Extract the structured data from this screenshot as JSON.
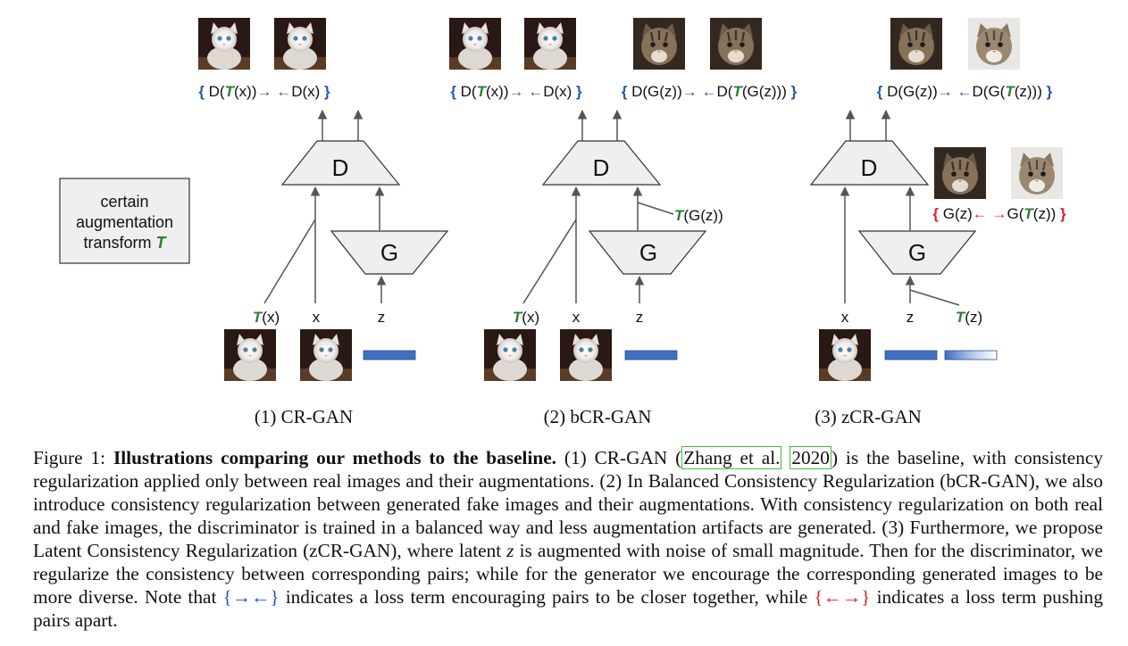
{
  "augment_box": {
    "line1": "certain",
    "line2": "augmentation",
    "line3": "transform",
    "symbol": "T"
  },
  "panels": [
    {
      "id": "cr",
      "caption": "(1) CR-GAN",
      "top_losses": [
        {
          "parts": [
            "{ ",
            "D(",
            "T",
            "(x))",
            "→ ←",
            "D(x)",
            " }"
          ]
        }
      ],
      "inputs": [
        "T(x)",
        "x",
        "z"
      ]
    },
    {
      "id": "bcr",
      "caption": "(2) bCR-GAN",
      "top_losses": [
        {
          "parts": [
            "{ ",
            "D(",
            "T",
            "(x))",
            "→ ←",
            "D(x)",
            " }"
          ]
        },
        {
          "parts": [
            "{ ",
            "D(G(z))",
            "→ ←",
            "D(",
            "T",
            "(G(z)))",
            " }"
          ]
        }
      ],
      "side_label": [
        "T",
        "(G(z))"
      ],
      "inputs": [
        "T(x)",
        "x",
        "z"
      ]
    },
    {
      "id": "zcr",
      "caption": "(3) zCR-GAN",
      "top_losses": [
        {
          "parts": [
            "{ ",
            "D(G(z))",
            "→ ←",
            "D(G(",
            "T",
            "(z)))",
            " }"
          ]
        }
      ],
      "gen_loss": {
        "parts": [
          "{ ",
          "G(z)",
          "← →",
          "G(",
          "T",
          "(z))",
          " }"
        ]
      },
      "inputs": [
        "x",
        "z",
        "T(z)"
      ]
    }
  ],
  "blocks": {
    "discriminator": "D",
    "generator": "G"
  },
  "caption": {
    "figure_label": "Figure 1:",
    "title": "Illustrations comparing our methods to the baseline.",
    "p1": "(1) CR-GAN (",
    "cite_author": "Zhang et al.",
    "cite_year": "2020",
    "p2": ") is the baseline, with consistency regularization applied only between real images and their augmentations. (2) In Balanced Consistency Regularization (bCR-GAN), we also introduce consistency regularization between generated fake images and their augmentations. With consistency regularization on both real and fake images, the discriminator is trained in a balanced way and less augmentation artifacts are generated. (3) Furthermore, we propose Latent Consistency Regularization (zCR-GAN), where latent ",
    "z": "z",
    "p3": " is augmented with noise of small magnitude. Then for the discriminator, we regularize the consistency between corresponding pairs; while for the generator we encourage the corresponding generated images to be more diverse. Note that ",
    "attract_symbol": "{→←}",
    "p4": " indicates a loss term encouraging pairs to be closer together, while ",
    "repel_symbol": "{←→}",
    "p5": " indicates a loss term pushing pairs apart."
  },
  "colors": {
    "blue": "#2457b0",
    "red": "#e02020",
    "green": "#2e7d32",
    "latent": "#3f6fbf"
  }
}
